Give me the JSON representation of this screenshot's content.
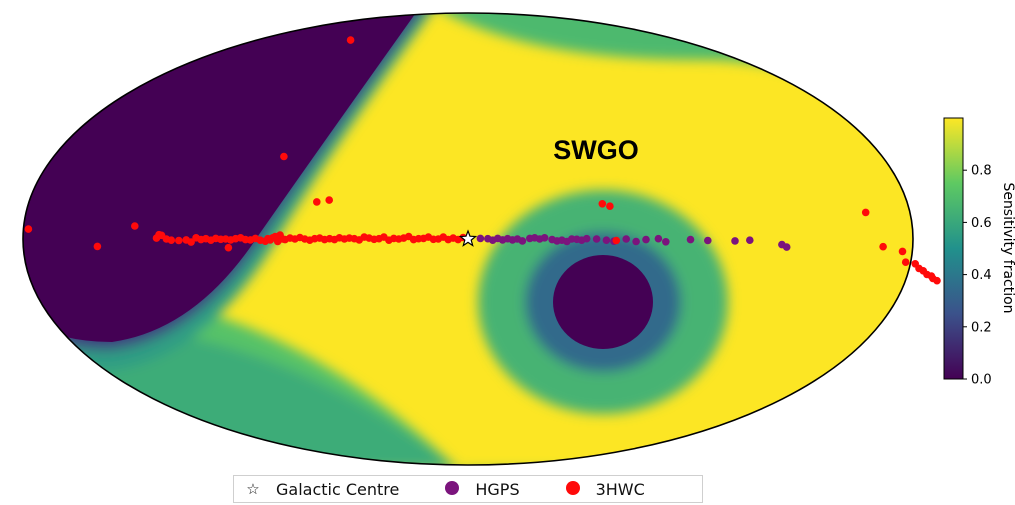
{
  "chart_data": {
    "type": "scatter",
    "projection": "mollweide",
    "coordinates": "galactic",
    "annotation": "SWGO",
    "colorbar": {
      "label": "Sensitivity fraction",
      "ticks": [
        "0.0",
        "0.2",
        "0.4",
        "0.6",
        "0.8"
      ],
      "range": [
        0,
        1
      ],
      "colormap": "viridis"
    },
    "legend": {
      "placement": "bottom",
      "entries": [
        "Galactic Centre",
        "HGPS",
        "3HWC"
      ]
    },
    "series": [
      {
        "name": "Galactic Centre",
        "marker": "star",
        "color": "#ffffff",
        "points": [
          [
            0,
            0
          ]
        ]
      },
      {
        "name": "HGPS",
        "marker": "circle",
        "color": "#7b147d",
        "points": [
          [
            -5,
            0.2
          ],
          [
            -8,
            0.1
          ],
          [
            -10,
            -0.4
          ],
          [
            -12,
            0.2
          ],
          [
            -14,
            -0.3
          ],
          [
            -16,
            0.1
          ],
          [
            -18,
            -0.3
          ],
          [
            -20,
            0.0
          ],
          [
            -22,
            -0.6
          ],
          [
            -25,
            0.2
          ],
          [
            -27,
            0.4
          ],
          [
            -29,
            0.0
          ],
          [
            -31,
            0.4
          ],
          [
            -34,
            -0.2
          ],
          [
            -36,
            -0.6
          ],
          [
            -38,
            -0.4
          ],
          [
            -40,
            -0.8
          ],
          [
            -42,
            0.0
          ],
          [
            -44,
            -0.1
          ],
          [
            -46,
            -0.4
          ],
          [
            -48,
            0.1
          ],
          [
            -52,
            0.0
          ],
          [
            -56,
            -0.4
          ],
          [
            -59,
            -0.7
          ],
          [
            -64,
            0.0
          ],
          [
            -68,
            -0.8
          ],
          [
            -72,
            -0.2
          ],
          [
            -77,
            0.1
          ],
          [
            -80,
            -0.9
          ],
          [
            -90,
            -0.2
          ],
          [
            -97,
            -0.5
          ],
          [
            -108,
            -0.6
          ],
          [
            -114,
            -0.4
          ],
          [
            -127,
            -1.8
          ],
          [
            -129,
            -2.6
          ]
        ]
      },
      {
        "name": "3HWC",
        "marker": "circle",
        "color": "#ff0a0a",
        "points": [
          [
            2,
            0.5
          ],
          [
            4,
            -0.2
          ],
          [
            6,
            0.3
          ],
          [
            8,
            -0.2
          ],
          [
            10,
            0.6
          ],
          [
            12,
            0.0
          ],
          [
            14,
            -0.1
          ],
          [
            16,
            0.6
          ],
          [
            18,
            0.2
          ],
          [
            20,
            0.1
          ],
          [
            22,
            -0.2
          ],
          [
            24,
            0.8
          ],
          [
            26,
            0.3
          ],
          [
            28,
            0.0
          ],
          [
            30,
            0.2
          ],
          [
            32,
            -0.4
          ],
          [
            34,
            0.6
          ],
          [
            36,
            0.1
          ],
          [
            38,
            -0.1
          ],
          [
            40,
            0.3
          ],
          [
            42,
            0.6
          ],
          [
            44,
            -0.3
          ],
          [
            46,
            0.1
          ],
          [
            48,
            0.3
          ],
          [
            50,
            0.0
          ],
          [
            52,
            0.4
          ],
          [
            54,
            -0.2
          ],
          [
            56,
            0.1
          ],
          [
            58,
            -0.2
          ],
          [
            60,
            0.3
          ],
          [
            62,
            0.1
          ],
          [
            64,
            -0.4
          ],
          [
            66,
            0.0
          ],
          [
            68,
            0.5
          ],
          [
            70,
            0.0
          ],
          [
            72,
            0.3
          ],
          [
            74,
            -0.2
          ],
          [
            75,
            0.0
          ],
          [
            76,
            1.3
          ],
          [
            77,
            -0.8
          ],
          [
            78,
            0.8
          ],
          [
            79,
            0.4
          ],
          [
            80,
            -0.3
          ],
          [
            81,
            0.1
          ],
          [
            82,
            -0.7
          ],
          [
            84,
            -0.4
          ],
          [
            86,
            0.2
          ],
          [
            88,
            -0.3
          ],
          [
            90,
            -0.2
          ],
          [
            92,
            0.4
          ],
          [
            94,
            0.1
          ],
          [
            96,
            -0.3
          ],
          [
            97,
            -2.8
          ],
          [
            98,
            0.0
          ],
          [
            100,
            -0.1
          ],
          [
            102,
            0.2
          ],
          [
            104,
            -0.4
          ],
          [
            106,
            0.1
          ],
          [
            108,
            -0.2
          ],
          [
            110,
            0.4
          ],
          [
            112,
            -1.0
          ],
          [
            114,
            -0.3
          ],
          [
            117,
            -0.5
          ],
          [
            120,
            -0.4
          ],
          [
            122,
            0.0
          ],
          [
            124,
            1.2
          ],
          [
            125,
            1.4
          ],
          [
            126,
            0.3
          ],
          [
            135,
            4.2
          ],
          [
            150,
            -2.4
          ],
          [
            178,
            3.2
          ],
          [
            -55,
            11.4
          ],
          [
            -58,
            10.6
          ],
          [
            -60,
            -0.5
          ],
          [
            -162,
            8.6
          ],
          [
            -168,
            -2.5
          ],
          [
            -176,
            -4.0
          ],
          [
            -178,
            -7.5
          ],
          [
            -182,
            -8.0
          ],
          [
            -184,
            -9.5
          ],
          [
            -186,
            -10.3
          ],
          [
            -188,
            -11.5
          ],
          [
            -190,
            -12.0
          ],
          [
            -191,
            -12.8
          ],
          [
            -193,
            -13.5
          ],
          [
            80,
            27.0
          ],
          [
            100,
            72.0
          ],
          [
            62,
            12.0
          ],
          [
            57,
            12.6
          ]
        ]
      }
    ]
  }
}
